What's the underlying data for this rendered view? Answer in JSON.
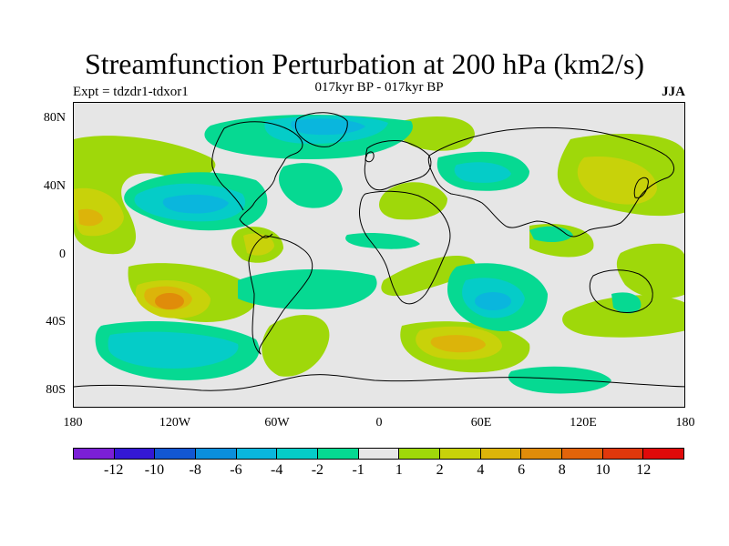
{
  "title": "Streamfunction Perturbation at 200 hPa (km2/s)",
  "subtitle": "017kyr BP - 017kyr BP",
  "experiment": "Expt = tdzdr1-tdxor1",
  "season": "JJA",
  "lat_ticks": [
    "80N",
    "40N",
    "0",
    "40S",
    "80S"
  ],
  "lon_ticks": [
    "180",
    "120W",
    "60W",
    "0",
    "60E",
    "120E",
    "180"
  ],
  "colorbar": {
    "colors": [
      "#7b1fd6",
      "#3418d4",
      "#1257d2",
      "#0b8fdc",
      "#0ab6dd",
      "#05ccc8",
      "#06d992",
      "#e6e6e6",
      "#9fd80a",
      "#c8d20a",
      "#dcb40a",
      "#e08c0a",
      "#e2640a",
      "#e0380c",
      "#e00a0a"
    ],
    "labels": [
      "-12",
      "-10",
      "-8",
      "-6",
      "-4",
      "-2",
      "-1",
      "1",
      "2",
      "4",
      "6",
      "8",
      "10",
      "12"
    ]
  },
  "chart_data": {
    "type": "contour-map",
    "projection": "cylindrical-equidistant",
    "lon_range": [
      -180,
      180
    ],
    "lat_range": [
      -90,
      90
    ],
    "units": "km2/s",
    "levels": [
      -12,
      -10,
      -8,
      -6,
      -4,
      -2,
      -1,
      1,
      2,
      4,
      6,
      8,
      10,
      12
    ],
    "features": [
      {
        "name": "north-pacific-positive",
        "lon": -165,
        "lat": 25,
        "value": 4
      },
      {
        "name": "north-america-negative",
        "lon": -95,
        "lat": 35,
        "value": -4
      },
      {
        "name": "south-pacific-positive-max",
        "lon": -120,
        "lat": -25,
        "value": 6
      },
      {
        "name": "south-pacific-negative",
        "lon": -110,
        "lat": -55,
        "value": -2
      },
      {
        "name": "north-atlantic-negative",
        "lon": -30,
        "lat": 45,
        "value": -2
      },
      {
        "name": "arctic-negative",
        "lon": -40,
        "lat": 75,
        "value": -4
      },
      {
        "name": "south-atlantic-positive",
        "lon": -40,
        "lat": -55,
        "value": 2
      },
      {
        "name": "indian-ocean-negative",
        "lon": 75,
        "lat": -30,
        "value": -4
      },
      {
        "name": "southern-ocean-positive",
        "lon": 60,
        "lat": -55,
        "value": 4
      },
      {
        "name": "eurasia-negative",
        "lon": 60,
        "lat": 40,
        "value": -2
      },
      {
        "name": "east-asia-positive",
        "lon": 150,
        "lat": 40,
        "value": 2
      },
      {
        "name": "antarctic-negative",
        "lon": 120,
        "lat": -70,
        "value": -2
      }
    ]
  }
}
